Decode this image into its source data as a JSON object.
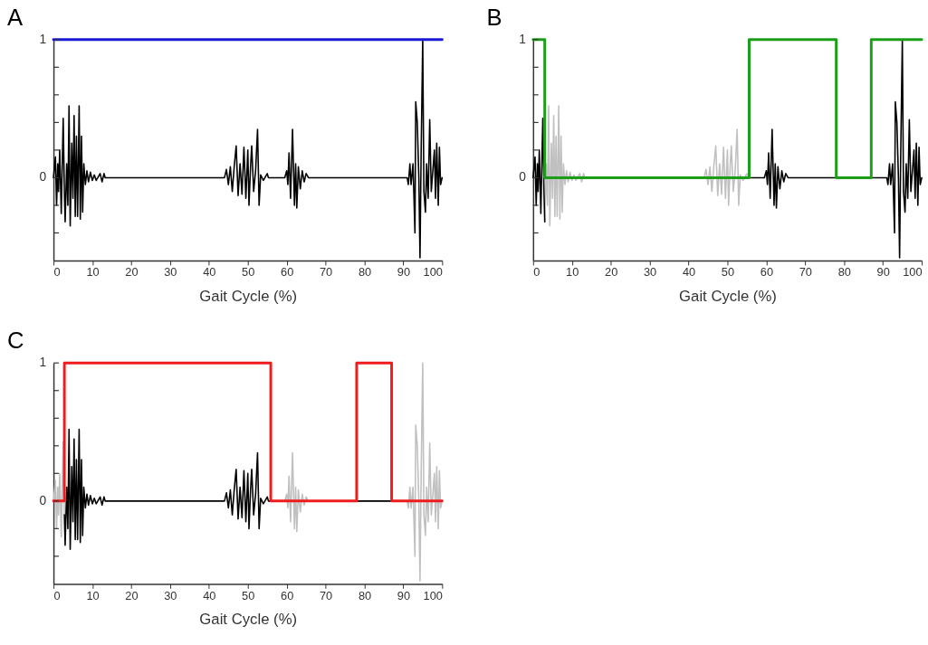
{
  "chart_data": [
    {
      "type": "line",
      "title": "A",
      "xlabel": "Gait Cycle (%)",
      "xlim": [
        0,
        100
      ],
      "xticks": [
        0,
        10,
        20,
        30,
        40,
        50,
        60,
        70,
        80,
        90,
        100
      ],
      "ylim": [
        -0.6,
        1
      ],
      "yticks": [
        {
          "value": -0.4,
          "label": null
        },
        {
          "value": -0.2,
          "label": null
        },
        0,
        {
          "value": 0.2,
          "label": null
        },
        {
          "value": 0.4,
          "label": null
        },
        {
          "value": 0.6,
          "label": null
        },
        {
          "value": 0.8,
          "label": null
        },
        1
      ],
      "grid": false,
      "legend": false,
      "series": [
        {
          "type": "line",
          "color": "#000000",
          "x": [
            0,
            0.5,
            0.8,
            1.1,
            1.3,
            1.6,
            2.0,
            2.5,
            2.8,
            3.0,
            3.4,
            3.7,
            4.0,
            4.3,
            4.7,
            5.0,
            5.3,
            5.6,
            5.9,
            6.2,
            6.6,
            6.9,
            7.2,
            7.5,
            7.8,
            8.2,
            8.6,
            9.0,
            9.5,
            10,
            10.5,
            11,
            12,
            12.5,
            13,
            13.3,
            44,
            44.5,
            45,
            45.5,
            46,
            46.5,
            47,
            47.5,
            48,
            48.5,
            49,
            49.5,
            50,
            50.3,
            50.7,
            51,
            51.5,
            52,
            52.5,
            52.9,
            53.3,
            54,
            55,
            55.3,
            55.6,
            55.9,
            59.5,
            60,
            60.3,
            60.6,
            61,
            61.5,
            62,
            62.3,
            62.6,
            63,
            63.5,
            64,
            64.5,
            65,
            65.6,
            78,
            87,
            91,
            91.3,
            91.7,
            92,
            92.5,
            93,
            93.2,
            93.6,
            94,
            94.3,
            94.6,
            95,
            95.3,
            95.7,
            96,
            96.4,
            96.8,
            97.2,
            97.6,
            98,
            98.3,
            98.6,
            99,
            99.3,
            99.6,
            100
          ],
          "values": [
            0,
            0.15,
            -0.2,
            0.1,
            -0.1,
            0.2,
            -0.26,
            0.43,
            -0.1,
            -0.32,
            0.1,
            -0.2,
            0.52,
            -0.35,
            0.25,
            -0.15,
            0.45,
            -0.28,
            0.3,
            -0.28,
            0.52,
            -0.3,
            0.3,
            -0.25,
            0.1,
            -0.05,
            0.05,
            -0.03,
            0.04,
            -0.02,
            0.02,
            -0.02,
            0.03,
            -0.03,
            0.03,
            0,
            0,
            0.06,
            -0.05,
            0.08,
            -0.1,
            0.08,
            0.23,
            -0.13,
            0.1,
            -0.12,
            0.22,
            -0.15,
            0.2,
            -0.2,
            0.08,
            0.23,
            -0.1,
            0.05,
            0.35,
            -0.2,
            0.02,
            -0.02,
            0.03,
            0,
            0,
            0,
            0,
            0.05,
            -0.05,
            0.18,
            -0.15,
            0.35,
            -0.2,
            0.1,
            -0.22,
            0.08,
            -0.08,
            0.05,
            -0.03,
            0.03,
            0,
            0,
            0,
            0,
            -0.05,
            0.1,
            -0.05,
            0.1,
            -0.4,
            0.55,
            0.4,
            0,
            -0.58,
            0.2,
            1,
            -0.1,
            -0.25,
            0.1,
            -0.15,
            0.42,
            -0.1,
            0.05,
            0.2,
            -0.15,
            0.25,
            -0.2,
            0.22,
            -0.05,
            0
          ]
        },
        {
          "type": "step",
          "color": "#1a1ad6",
          "x": [
            0,
            100
          ],
          "values": [
            1,
            1
          ]
        }
      ]
    },
    {
      "type": "line",
      "title": "B",
      "xlabel": "Gait Cycle (%)",
      "xlim": [
        0,
        100
      ],
      "xticks": [
        0,
        10,
        20,
        30,
        40,
        50,
        60,
        70,
        80,
        90,
        100
      ],
      "ylim": [
        -0.6,
        1
      ],
      "yticks": [
        {
          "value": -0.4,
          "label": null
        },
        {
          "value": -0.2,
          "label": null
        },
        0,
        {
          "value": 0.2,
          "label": null
        },
        {
          "value": 0.4,
          "label": null
        },
        {
          "value": 0.6,
          "label": null
        },
        {
          "value": 0.8,
          "label": null
        },
        1
      ],
      "grid": false,
      "legend": false,
      "series": [
        {
          "type": "line",
          "color": "#c0c0c0",
          "x": [
            3.0,
            3.4,
            3.7,
            4.0,
            4.3,
            4.7,
            5.0,
            5.3,
            5.6,
            5.9,
            6.2,
            6.6,
            6.9,
            7.2,
            7.5,
            7.8,
            8.2,
            8.6,
            9.0,
            9.5,
            10,
            10.5,
            11,
            12,
            12.5,
            13,
            13.3,
            44,
            44.5,
            45,
            45.5,
            46,
            46.5,
            47,
            47.5,
            48,
            48.5,
            49,
            49.5,
            50,
            50.3,
            50.7,
            51,
            51.5,
            52,
            52.5,
            52.9,
            53.3,
            54,
            55,
            55.3,
            55.6
          ],
          "values": [
            -0.32,
            0.1,
            -0.2,
            0.52,
            -0.35,
            0.25,
            -0.15,
            0.45,
            -0.28,
            0.3,
            -0.28,
            0.52,
            -0.3,
            0.3,
            -0.25,
            0.1,
            -0.05,
            0.05,
            -0.03,
            0.04,
            -0.02,
            0.02,
            -0.02,
            0.03,
            -0.03,
            0.03,
            0,
            0,
            0.06,
            -0.05,
            0.08,
            -0.1,
            0.08,
            0.23,
            -0.13,
            0.1,
            -0.12,
            0.22,
            -0.15,
            0.2,
            -0.2,
            0.08,
            0.23,
            -0.1,
            0.05,
            0.35,
            -0.2,
            0.02,
            -0.02,
            0.03,
            0,
            0
          ]
        },
        {
          "type": "line",
          "color": "#000000",
          "x": [
            0,
            0.5,
            0.8,
            1.1,
            1.3,
            1.6,
            2.0,
            2.5,
            2.8,
            3.0
          ],
          "values": [
            0,
            0.15,
            -0.2,
            0.1,
            -0.1,
            0.2,
            -0.26,
            0.43,
            -0.1,
            -0.32
          ]
        },
        {
          "type": "line",
          "color": "#000000",
          "x": [
            55.6,
            55.9,
            59.5,
            60,
            60.3,
            60.6,
            61,
            61.5,
            62,
            62.3,
            62.6,
            63,
            63.5,
            64,
            64.5,
            65,
            65.6,
            78,
            87,
            91,
            91.3,
            91.7,
            92,
            92.5,
            93,
            93.2,
            93.6,
            94,
            94.3,
            94.6,
            95,
            95.3,
            95.7,
            96,
            96.4,
            96.8,
            97.2,
            97.6,
            98,
            98.3,
            98.6,
            99,
            99.3,
            99.6,
            100
          ],
          "values": [
            0,
            0,
            0,
            0.05,
            -0.05,
            0.18,
            -0.15,
            0.35,
            -0.2,
            0.1,
            -0.22,
            0.08,
            -0.08,
            0.05,
            -0.03,
            0.03,
            0,
            0,
            0,
            0,
            -0.05,
            0.1,
            -0.05,
            0.1,
            -0.4,
            0.55,
            0.4,
            0,
            -0.58,
            0.2,
            1,
            -0.1,
            -0.25,
            0.1,
            -0.15,
            0.42,
            -0.1,
            0.05,
            0.2,
            -0.15,
            0.25,
            -0.2,
            0.22,
            -0.05,
            0
          ]
        },
        {
          "type": "step",
          "color": "#1a9e1a",
          "x": [
            0,
            3.0,
            55.6,
            78,
            87,
            100
          ],
          "values": [
            1,
            0,
            1,
            0,
            1,
            1
          ]
        }
      ]
    },
    {
      "type": "line",
      "title": "C",
      "xlabel": "Gait Cycle (%)",
      "xlim": [
        0,
        100
      ],
      "xticks": [
        0,
        10,
        20,
        30,
        40,
        50,
        60,
        70,
        80,
        90,
        100
      ],
      "ylim": [
        -0.6,
        1
      ],
      "yticks": [
        {
          "value": -0.4,
          "label": null
        },
        {
          "value": -0.2,
          "label": null
        },
        0,
        {
          "value": 0.2,
          "label": null
        },
        {
          "value": 0.4,
          "label": null
        },
        {
          "value": 0.6,
          "label": null
        },
        {
          "value": 0.8,
          "label": null
        },
        1
      ],
      "grid": false,
      "legend": false,
      "series": [
        {
          "type": "line",
          "color": "#c0c0c0",
          "x": [
            0,
            0.5,
            0.8,
            1.1,
            1.3,
            1.6,
            2.0,
            2.5,
            2.8
          ],
          "values": [
            0,
            0.15,
            -0.2,
            0.1,
            -0.1,
            0.2,
            -0.26,
            0.43,
            -0.1
          ]
        },
        {
          "type": "line",
          "color": "#c0c0c0",
          "x": [
            55.9,
            59.5,
            60,
            60.3,
            60.6,
            61,
            61.5,
            62,
            62.3,
            62.6,
            63,
            63.5,
            64,
            64.5,
            65,
            65.6,
            78,
            87,
            91,
            91.3,
            91.7,
            92,
            92.5,
            93,
            93.2,
            93.6,
            94,
            94.3,
            94.6,
            95,
            95.3,
            95.7,
            96,
            96.4,
            96.8,
            97.2,
            97.6,
            98,
            98.3,
            98.6,
            99,
            99.3,
            99.6,
            100
          ],
          "values": [
            0,
            0,
            0.05,
            -0.05,
            0.18,
            -0.15,
            0.35,
            -0.2,
            0.1,
            -0.22,
            0.08,
            -0.08,
            0.05,
            -0.03,
            0.03,
            0,
            0,
            0,
            0,
            -0.05,
            0.1,
            -0.05,
            0.1,
            -0.4,
            0.55,
            0.4,
            0,
            -0.58,
            0.2,
            1,
            -0.1,
            -0.25,
            0.1,
            -0.15,
            0.42,
            -0.1,
            0.05,
            0.2,
            -0.15,
            0.25,
            -0.2,
            0.22,
            -0.05,
            0
          ]
        },
        {
          "type": "line",
          "color": "#000000",
          "x": [
            2.8,
            3.0,
            3.4,
            3.7,
            4.0,
            4.3,
            4.7,
            5.0,
            5.3,
            5.6,
            5.9,
            6.2,
            6.6,
            6.9,
            7.2,
            7.5,
            7.8,
            8.2,
            8.6,
            9.0,
            9.5,
            10,
            10.5,
            11,
            12,
            12.5,
            13,
            13.3,
            44,
            44.5,
            45,
            45.5,
            46,
            46.5,
            47,
            47.5,
            48,
            48.5,
            49,
            49.5,
            50,
            50.3,
            50.7,
            51,
            51.5,
            52,
            52.5,
            52.9,
            53.3,
            54,
            55,
            55.3,
            55.6,
            55.9
          ],
          "values": [
            -0.1,
            -0.32,
            0.1,
            -0.2,
            0.52,
            -0.35,
            0.25,
            -0.15,
            0.45,
            -0.28,
            0.3,
            -0.28,
            0.52,
            -0.3,
            0.3,
            -0.25,
            0.1,
            -0.05,
            0.05,
            -0.03,
            0.04,
            -0.02,
            0.02,
            -0.02,
            0.03,
            -0.03,
            0.03,
            0,
            0,
            0.06,
            -0.05,
            0.08,
            -0.1,
            0.08,
            0.23,
            -0.13,
            0.1,
            -0.12,
            0.22,
            -0.15,
            0.2,
            -0.2,
            0.08,
            0.23,
            -0.1,
            0.05,
            0.35,
            -0.2,
            0.02,
            -0.02,
            0.03,
            0,
            0,
            0
          ]
        },
        {
          "type": "line",
          "color": "#000000",
          "x": [
            78,
            87
          ],
          "values": [
            0,
            0
          ]
        },
        {
          "type": "step",
          "color": "#ee1c1c",
          "x": [
            0,
            2.8,
            55.9,
            78,
            87,
            100
          ],
          "values": [
            0,
            1,
            0,
            1,
            0,
            0
          ]
        }
      ]
    }
  ]
}
